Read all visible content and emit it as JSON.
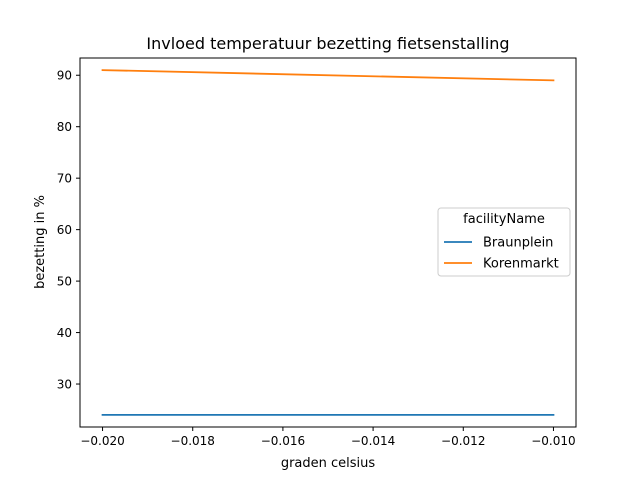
{
  "chart_data": {
    "type": "line",
    "title": "Invloed temperatuur bezetting fietsenstalling",
    "xlabel": "graden celsius",
    "ylabel": "bezetting in %",
    "xlim": [
      -0.0205,
      -0.0095
    ],
    "ylim": [
      21.65,
      93.35
    ],
    "xticks": [
      -0.02,
      -0.018,
      -0.016,
      -0.014,
      -0.012,
      -0.01
    ],
    "xtick_labels": [
      "−0.020",
      "−0.018",
      "−0.016",
      "−0.014",
      "−0.012",
      "−0.010"
    ],
    "yticks": [
      30,
      40,
      50,
      60,
      70,
      80,
      90
    ],
    "ytick_labels": [
      "30",
      "40",
      "50",
      "60",
      "70",
      "80",
      "90"
    ],
    "grid": false,
    "legend": {
      "title": "facilityName",
      "placement": "center-right"
    },
    "series": [
      {
        "name": "Braunplein",
        "color": "#1f77b4",
        "x": [
          -0.02,
          -0.01
        ],
        "y": [
          24,
          24
        ]
      },
      {
        "name": "Korenmarkt",
        "color": "#ff7f0e",
        "x": [
          -0.02,
          -0.01
        ],
        "y": [
          91,
          89
        ]
      }
    ]
  }
}
